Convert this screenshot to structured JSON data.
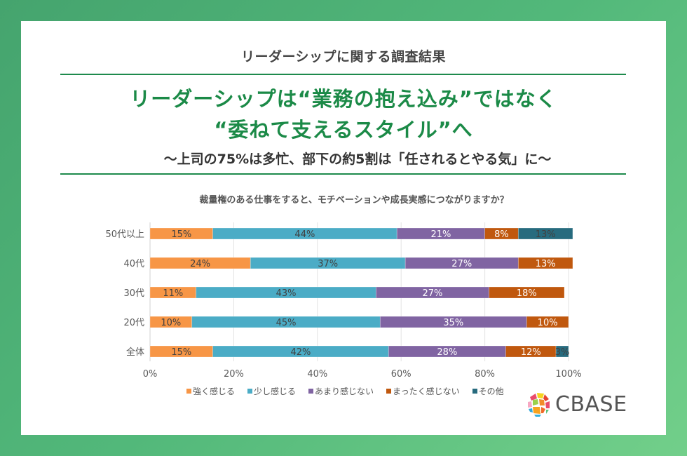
{
  "header": {
    "kicker": "リーダーシップに関する調査結果",
    "headline_line1": "リーダーシップは“業務の抱え込み”ではなく",
    "headline_line2": "“委ねて支えるスタイル”へ",
    "subheadline": "〜上司の75%は多忙、部下の約5割は「任されるとやる気」に〜"
  },
  "logo": {
    "text": "CBASE",
    "icon": "colorful-mosaic-sphere-icon"
  },
  "chart_data": {
    "type": "bar",
    "orientation": "horizontal",
    "stacked": true,
    "title": "裁量権のある仕事をすると、モチベーションや成長実感につながりますか？",
    "categories": [
      "50代以上",
      "40代",
      "30代",
      "20代",
      "全体"
    ],
    "series": [
      {
        "name": "強く感じる",
        "color": "#f79646",
        "values": [
          15,
          24,
          11,
          10,
          15
        ]
      },
      {
        "name": "少し感じる",
        "color": "#4bacc6",
        "values": [
          44,
          37,
          43,
          45,
          42
        ]
      },
      {
        "name": "あまり感じない",
        "color": "#8064a2",
        "values": [
          21,
          27,
          27,
          35,
          28
        ]
      },
      {
        "name": "まったく感じない",
        "color": "#c0580e",
        "values": [
          8,
          13,
          18,
          10,
          12
        ]
      },
      {
        "name": "その他",
        "color": "#276b7e",
        "values": [
          13,
          0,
          0,
          0,
          3
        ]
      }
    ],
    "xlim": [
      0,
      100
    ],
    "xticks": [
      "0%",
      "20%",
      "40%",
      "60%",
      "80%",
      "100%"
    ],
    "xlabel": "",
    "ylabel": "",
    "grid": true,
    "legend_position": "bottom",
    "label_colors": {
      "light": "#ffffff",
      "dark": "#404040"
    }
  }
}
